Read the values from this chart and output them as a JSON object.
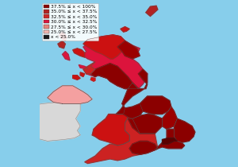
{
  "background_color": "#87CEEB",
  "sea_color": "#87CEEB",
  "figsize": [
    3.0,
    2.1
  ],
  "dpi": 100,
  "legend_fontsize": 4.2,
  "legend_colors": [
    "#8B0000",
    "#B22222",
    "#CD2626",
    "#DC143C",
    "#E8837A",
    "#F4B8B0",
    "#1a1a1a"
  ],
  "legend_labels": [
    "37.5% ≤ x < 100%",
    "35.0% ≤ x < 37.5%",
    "32.5% ≤ x < 35.0%",
    "30.0% ≤ x < 32.5%",
    "27.5% ≤ x < 30.0%",
    "25.0% ≤ x < 27.5%",
    "x < 25.0%"
  ],
  "xlim": [
    -8.7,
    1.9
  ],
  "ylim": [
    49.8,
    60.9
  ],
  "ireland_color": "#D8D8D8",
  "ireland_outline": "#888888",
  "ni_color": "#F4A0A0",
  "ni_outline": "#666666"
}
